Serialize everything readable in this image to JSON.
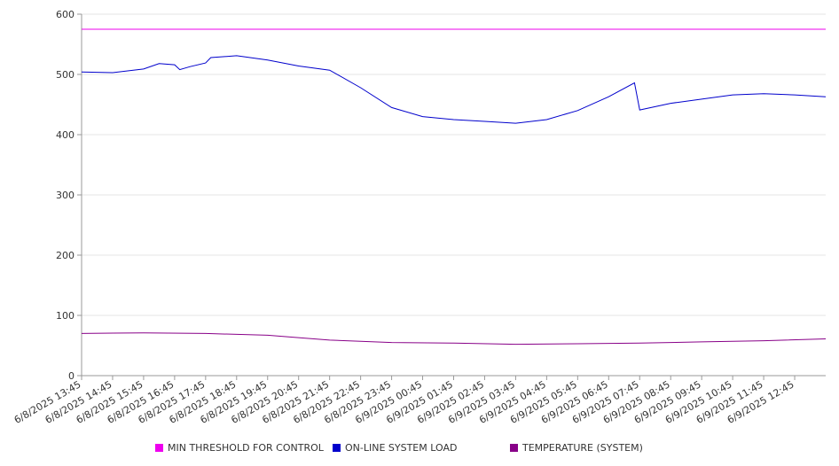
{
  "chart_data": {
    "type": "line",
    "title": "",
    "xlabel": "",
    "ylabel": "",
    "ylim": [
      0,
      600
    ],
    "yticks": [
      0,
      100,
      200,
      300,
      400,
      500,
      600
    ],
    "grid": true,
    "legend_position": "bottom",
    "x_tick_labels": [
      "6/8/2025 13:45",
      "6/8/2025 14:45",
      "6/8/2025 15:45",
      "6/8/2025 16:45",
      "6/8/2025 17:45",
      "6/8/2025 18:45",
      "6/8/2025 19:45",
      "6/8/2025 20:45",
      "6/8/2025 21:45",
      "6/8/2025 22:45",
      "6/8/2025 23:45",
      "6/9/2025 00:45",
      "6/9/2025 01:45",
      "6/9/2025 02:45",
      "6/9/2025 03:45",
      "6/9/2025 04:45",
      "6/9/2025 05:45",
      "6/9/2025 06:45",
      "6/9/2025 07:45",
      "6/9/2025 08:45",
      "6/9/2025 09:45",
      "6/9/2025 10:45",
      "6/9/2025 11:45",
      "6/9/2025 12:45"
    ],
    "x_range": [
      "6/8/2025 13:45",
      "6/9/2025 13:45"
    ],
    "series": [
      {
        "name": "MIN THRESHOLD FOR CONTROL",
        "color": "#ee00ee",
        "points": [
          [
            "6/8/2025 13:45",
            575
          ],
          [
            "6/9/2025 13:45",
            575
          ]
        ]
      },
      {
        "name": "ON-LINE SYSTEM LOAD",
        "color": "#0000cc",
        "points": [
          [
            "6/8/2025 13:45",
            504
          ],
          [
            "6/8/2025 14:45",
            503
          ],
          [
            "6/8/2025 15:45",
            509
          ],
          [
            "6/8/2025 16:15",
            518
          ],
          [
            "6/8/2025 16:45",
            516
          ],
          [
            "6/8/2025 16:55",
            508
          ],
          [
            "6/8/2025 17:15",
            513
          ],
          [
            "6/8/2025 17:45",
            519
          ],
          [
            "6/8/2025 17:55",
            528
          ],
          [
            "6/8/2025 18:45",
            531
          ],
          [
            "6/8/2025 19:45",
            524
          ],
          [
            "6/8/2025 20:45",
            514
          ],
          [
            "6/8/2025 21:45",
            507
          ],
          [
            "6/8/2025 22:45",
            478
          ],
          [
            "6/8/2025 23:45",
            445
          ],
          [
            "6/9/2025 00:45",
            430
          ],
          [
            "6/9/2025 01:45",
            425
          ],
          [
            "6/9/2025 02:45",
            422
          ],
          [
            "6/9/2025 03:45",
            419
          ],
          [
            "6/9/2025 04:45",
            425
          ],
          [
            "6/9/2025 05:45",
            440
          ],
          [
            "6/9/2025 06:45",
            463
          ],
          [
            "6/9/2025 07:35",
            486
          ],
          [
            "6/9/2025 07:45",
            441
          ],
          [
            "6/9/2025 08:45",
            452
          ],
          [
            "6/9/2025 09:45",
            459
          ],
          [
            "6/9/2025 10:45",
            466
          ],
          [
            "6/9/2025 11:45",
            468
          ],
          [
            "6/9/2025 12:45",
            466
          ],
          [
            "6/9/2025 13:45",
            463
          ]
        ]
      },
      {
        "name": "TEMPERATURE (SYSTEM)",
        "color": "#880088",
        "points": [
          [
            "6/8/2025 13:45",
            70
          ],
          [
            "6/8/2025 15:45",
            71
          ],
          [
            "6/8/2025 17:45",
            70
          ],
          [
            "6/8/2025 19:45",
            67
          ],
          [
            "6/8/2025 21:45",
            59
          ],
          [
            "6/8/2025 23:45",
            55
          ],
          [
            "6/9/2025 01:45",
            54
          ],
          [
            "6/9/2025 03:45",
            52
          ],
          [
            "6/9/2025 05:45",
            53
          ],
          [
            "6/9/2025 07:45",
            54
          ],
          [
            "6/9/2025 09:45",
            56
          ],
          [
            "6/9/2025 11:45",
            58
          ],
          [
            "6/9/2025 13:45",
            61
          ]
        ]
      }
    ]
  }
}
